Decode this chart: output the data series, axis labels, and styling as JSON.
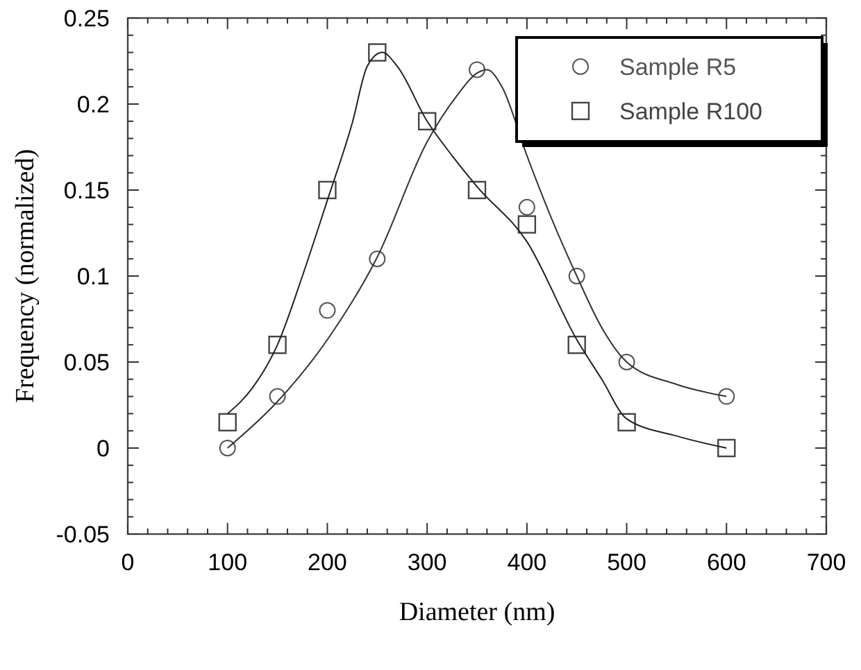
{
  "chart_data": {
    "type": "scatter",
    "xlabel": "Diameter (nm)",
    "ylabel": "Frequency (normalized)",
    "xlim": [
      0,
      700
    ],
    "ylim": [
      -0.05,
      0.25
    ],
    "xticks": [
      0,
      {
        "value": 20,
        "label": null
      },
      {
        "value": 40,
        "label": null
      },
      {
        "value": 60,
        "label": null
      },
      {
        "value": 80,
        "label": null
      },
      100,
      {
        "value": 120,
        "label": null
      },
      {
        "value": 140,
        "label": null
      },
      {
        "value": 160,
        "label": null
      },
      {
        "value": 180,
        "label": null
      },
      200,
      {
        "value": 220,
        "label": null
      },
      {
        "value": 240,
        "label": null
      },
      {
        "value": 260,
        "label": null
      },
      {
        "value": 280,
        "label": null
      },
      300,
      {
        "value": 320,
        "label": null
      },
      {
        "value": 340,
        "label": null
      },
      {
        "value": 360,
        "label": null
      },
      {
        "value": 380,
        "label": null
      },
      400,
      {
        "value": 420,
        "label": null
      },
      {
        "value": 440,
        "label": null
      },
      {
        "value": 460,
        "label": null
      },
      {
        "value": 480,
        "label": null
      },
      500,
      {
        "value": 520,
        "label": null
      },
      {
        "value": 540,
        "label": null
      },
      {
        "value": 560,
        "label": null
      },
      {
        "value": 580,
        "label": null
      },
      600,
      {
        "value": 620,
        "label": null
      },
      {
        "value": 640,
        "label": null
      },
      {
        "value": 660,
        "label": null
      },
      {
        "value": 680,
        "label": null
      },
      700
    ],
    "yticks": [
      -0.05,
      {
        "value": -0.04,
        "label": null
      },
      {
        "value": -0.03,
        "label": null
      },
      {
        "value": -0.02,
        "label": null
      },
      {
        "value": -0.01,
        "label": null
      },
      0,
      {
        "value": 0.01,
        "label": null
      },
      {
        "value": 0.02,
        "label": null
      },
      {
        "value": 0.03,
        "label": null
      },
      {
        "value": 0.04,
        "label": null
      },
      0.05,
      {
        "value": 0.06,
        "label": null
      },
      {
        "value": 0.07,
        "label": null
      },
      {
        "value": 0.08,
        "label": null
      },
      {
        "value": 0.09,
        "label": null
      },
      0.1,
      {
        "value": 0.11,
        "label": null
      },
      {
        "value": 0.12,
        "label": null
      },
      {
        "value": 0.13,
        "label": null
      },
      {
        "value": 0.14,
        "label": null
      },
      0.15,
      {
        "value": 0.16,
        "label": null
      },
      {
        "value": 0.17,
        "label": null
      },
      {
        "value": 0.18,
        "label": null
      },
      {
        "value": 0.19,
        "label": null
      },
      0.2,
      {
        "value": 0.21,
        "label": null
      },
      {
        "value": 0.22,
        "label": null
      },
      {
        "value": 0.23,
        "label": null
      },
      {
        "value": 0.24,
        "label": null
      },
      0.25
    ],
    "grid": false,
    "legend": "top right",
    "series": [
      {
        "name": "Sample R5",
        "marker": "circle",
        "color": "#555555",
        "x": [
          100,
          150,
          200,
          250,
          350,
          400,
          450,
          500,
          600
        ],
        "values": [
          0,
          0.03,
          0.08,
          0.11,
          0.22,
          0.14,
          0.1,
          0.05,
          0.03
        ]
      },
      {
        "name": "Sample R100",
        "marker": "square",
        "color": "#444444",
        "x": [
          100,
          150,
          200,
          250,
          300,
          350,
          400,
          450,
          500,
          600
        ],
        "values": [
          0.015,
          0.06,
          0.15,
          0.23,
          0.19,
          0.15,
          0.13,
          0.06,
          0.015,
          0
        ]
      },
      {
        "type": "line",
        "marker": "none",
        "line_style": "solid",
        "color": "#333333",
        "x": [
          100,
          150,
          200,
          250,
          300,
          330,
          350,
          360,
          375,
          400,
          425,
          450,
          475,
          500,
          550,
          600
        ],
        "values": [
          0,
          0.027,
          0.063,
          0.111,
          0.178,
          0.205,
          0.218,
          0.22,
          0.21,
          0.17,
          0.133,
          0.1,
          0.07,
          0.05,
          0.037,
          0.03
        ]
      },
      {
        "type": "line",
        "marker": "none",
        "line_style": "solid",
        "color": "#222222",
        "x": [
          100,
          125,
          150,
          175,
          200,
          225,
          240,
          255,
          270,
          300,
          325,
          350,
          400,
          450,
          475,
          500,
          550,
          600
        ],
        "values": [
          0.02,
          0.035,
          0.06,
          0.1,
          0.144,
          0.189,
          0.222,
          0.23,
          0.222,
          0.19,
          0.17,
          0.152,
          0.12,
          0.063,
          0.04,
          0.017,
          0.007,
          0
        ]
      }
    ]
  }
}
